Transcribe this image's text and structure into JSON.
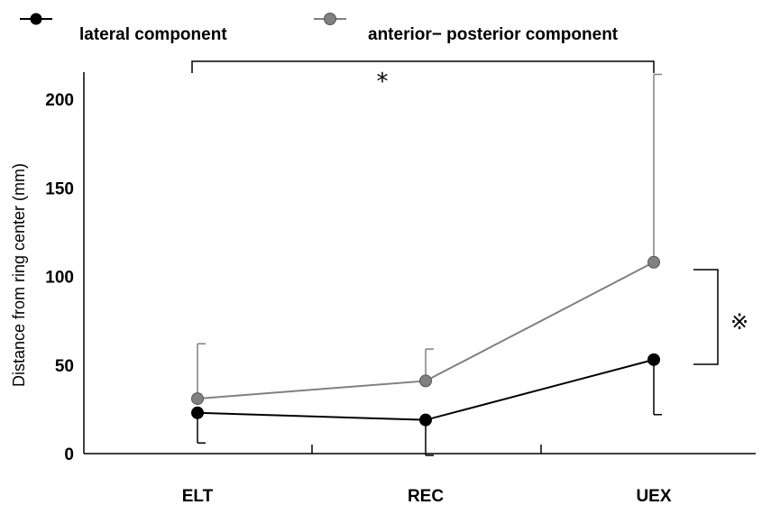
{
  "chart_data": {
    "type": "line",
    "title": "",
    "xlabel": "",
    "ylabel": "Distance from ring center (mm)",
    "categories": [
      "ELT",
      "REC",
      "UEX"
    ],
    "ylim": [
      0,
      215
    ],
    "yticks": [
      "0",
      "50",
      "100",
      "150",
      "200"
    ],
    "grid": false,
    "legend_position": "top",
    "series": [
      {
        "name": "lateral component",
        "color": "#000000",
        "values": [
          23,
          19,
          53
        ],
        "error": [
          17,
          20,
          31
        ]
      },
      {
        "name": "anterior− posterior component",
        "color": "#808080",
        "values": [
          31,
          41,
          108
        ],
        "error": [
          31,
          18,
          106
        ]
      }
    ],
    "annotations": {
      "significance_star": "*",
      "significance_mark": "※"
    }
  }
}
